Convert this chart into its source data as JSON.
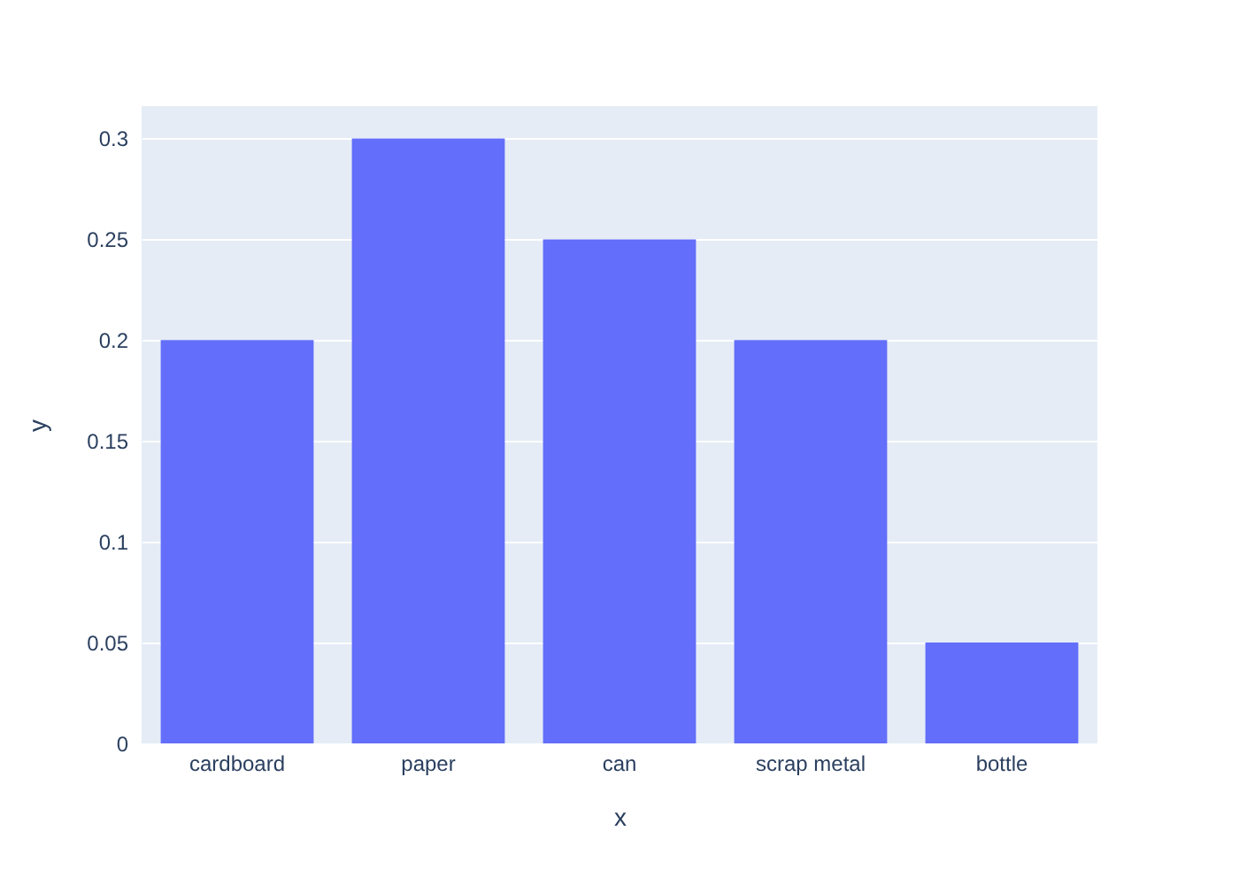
{
  "chart_data": {
    "type": "bar",
    "xlabel": "x",
    "ylabel": "y",
    "categories": [
      "cardboard",
      "paper",
      "can",
      "scrap metal",
      "bottle"
    ],
    "values": [
      0.2,
      0.3,
      0.25,
      0.2,
      0.05
    ],
    "color": "#636efa",
    "ylim": [
      0,
      0.316
    ],
    "yticks": [
      0,
      0.05,
      0.1,
      0.15,
      0.2,
      0.25,
      0.3
    ],
    "grid": "y"
  }
}
